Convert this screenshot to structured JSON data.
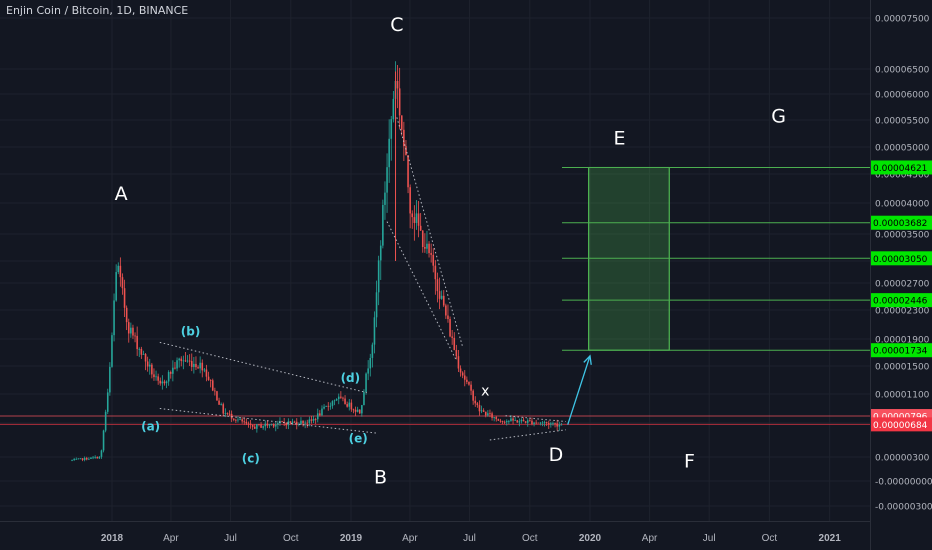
{
  "header": {
    "title": "Enjin Coin / Bitcoin, 1D, BINANCE"
  },
  "colors": {
    "background": "#131722",
    "up": "#26a69a",
    "down": "#ef5350",
    "text": "#d1d4dc",
    "wave_labels": "#4dd0e1",
    "target_lines": "#4caf50",
    "target_badge": "#00e600",
    "price_badge_last": "#f23645",
    "price_badge_prev": "#f7525f",
    "projection_arrow": "#3fc5e6"
  },
  "chart_data": {
    "type": "candlestick",
    "title": "Enjin Coin / Bitcoin, 1D, BINANCE",
    "xlabel": "",
    "ylabel": "",
    "y_axis_ticks": [
      "0.00007500",
      "0.00006500",
      "0.00006000",
      "0.00005500",
      "0.00005000",
      "0.00004500",
      "0.00004000",
      "0.00003500",
      "0.00003000",
      "0.00002700",
      "0.00002300",
      "0.00001900",
      "0.00001500",
      "0.00001100",
      "0.00000700",
      "0.00000300",
      "-0.00000000",
      "-0.00000300"
    ],
    "x_axis_ticks": [
      "2018",
      "Apr",
      "Jul",
      "Oct",
      "2019",
      "Apr",
      "Jul",
      "Oct",
      "2020",
      "Apr",
      "Jul",
      "Oct",
      "2021"
    ],
    "ylim": [
      -3e-06,
      7.5e-05
    ],
    "scale": "log-style (price axis compressed at top)",
    "grid": true,
    "price_path": [
      {
        "date": "2017-11-01",
        "price": 2.6e-06
      },
      {
        "date": "2017-12-15",
        "price": 3e-06
      },
      {
        "date": "2017-12-27",
        "price": 1.2e-05
      },
      {
        "date": "2018-01-08",
        "price": 3e-05
      },
      {
        "date": "2018-01-25",
        "price": 2.1e-05
      },
      {
        "date": "2018-02-20",
        "price": 1.6e-05
      },
      {
        "date": "2018-03-15",
        "price": 1.2e-05
      },
      {
        "date": "2018-04-15",
        "price": 1.6e-05
      },
      {
        "date": "2018-05-20",
        "price": 1.5e-05
      },
      {
        "date": "2018-06-20",
        "price": 8.5e-06
      },
      {
        "date": "2018-08-01",
        "price": 6.5e-06
      },
      {
        "date": "2018-09-15",
        "price": 7e-06
      },
      {
        "date": "2018-11-01",
        "price": 7.2e-06
      },
      {
        "date": "2018-12-10",
        "price": 1.05e-05
      },
      {
        "date": "2019-01-15",
        "price": 8.5e-06
      },
      {
        "date": "2019-02-05",
        "price": 2e-05
      },
      {
        "date": "2019-03-10",
        "price": 6.4e-05
      },
      {
        "date": "2019-04-01",
        "price": 4e-05
      },
      {
        "date": "2019-05-10",
        "price": 2.8e-05
      },
      {
        "date": "2019-06-15",
        "price": 1.5e-05
      },
      {
        "date": "2019-07-15",
        "price": 8.8e-06
      },
      {
        "date": "2019-08-15",
        "price": 7.4e-06
      },
      {
        "date": "2019-10-01",
        "price": 7.2e-06
      },
      {
        "date": "2019-11-20",
        "price": 6.8e-06
      }
    ],
    "wave_labels_primary": [
      "A",
      "B",
      "C",
      "D",
      "E",
      "F",
      "G",
      "x"
    ],
    "wave_labels_sub": [
      "(a)",
      "(b)",
      "(c)",
      "(d)",
      "(e)"
    ],
    "target_levels": [
      {
        "label": "0.00004621",
        "value": 4.621e-05
      },
      {
        "label": "0.00003682",
        "value": 3.682e-05
      },
      {
        "label": "0.00003050",
        "value": 3.05e-05
      },
      {
        "label": "0.00002446",
        "value": 2.446e-05
      },
      {
        "label": "0.00001734",
        "value": 1.734e-05
      }
    ],
    "price_badges": [
      {
        "label": "0.00000796",
        "value": 7.96e-06
      },
      {
        "label": "0.00000684",
        "value": 6.84e-06
      }
    ],
    "target_box": {
      "from_date": "2019-12-30",
      "to_date": "2020-05-01",
      "low": 1.734e-05,
      "high": 4.621e-05
    }
  }
}
